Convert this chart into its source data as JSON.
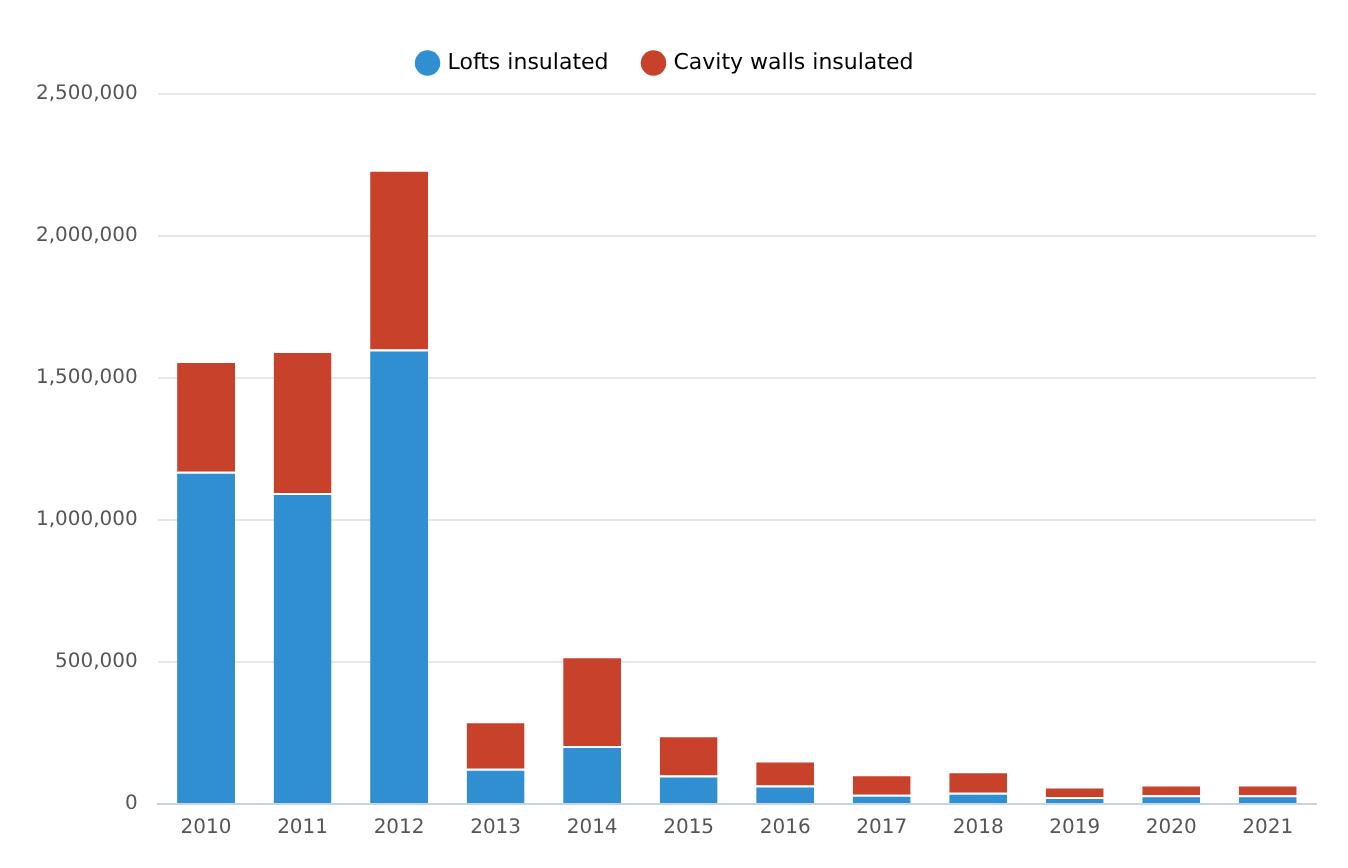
{
  "chart_data": {
    "type": "bar",
    "stacked": true,
    "categories": [
      "2010",
      "2011",
      "2012",
      "2013",
      "2014",
      "2015",
      "2016",
      "2017",
      "2018",
      "2019",
      "2020",
      "2021"
    ],
    "series": [
      {
        "name": "Lofts insulated",
        "color": "#2f8fd0",
        "values": [
          1170000,
          1095000,
          1600000,
          124000,
          204000,
          100000,
          65000,
          33000,
          40000,
          25000,
          31000,
          31000
        ]
      },
      {
        "name": "Cavity walls insulated",
        "color": "#c8422b",
        "values": [
          390000,
          500000,
          633000,
          167000,
          316000,
          142000,
          88000,
          72000,
          75000,
          37000,
          38000,
          38000
        ]
      }
    ],
    "ylim": [
      0,
      2500000
    ],
    "yticks": [
      {
        "value": 0,
        "label": "0"
      },
      {
        "value": 500000,
        "label": "500,000"
      },
      {
        "value": 1000000,
        "label": "1,000,000"
      },
      {
        "value": 1500000,
        "label": "1,500,000"
      },
      {
        "value": 2000000,
        "label": "2,000,000"
      },
      {
        "value": 2500000,
        "label": "2,500,000"
      }
    ],
    "grid": "y",
    "legend": "top"
  }
}
